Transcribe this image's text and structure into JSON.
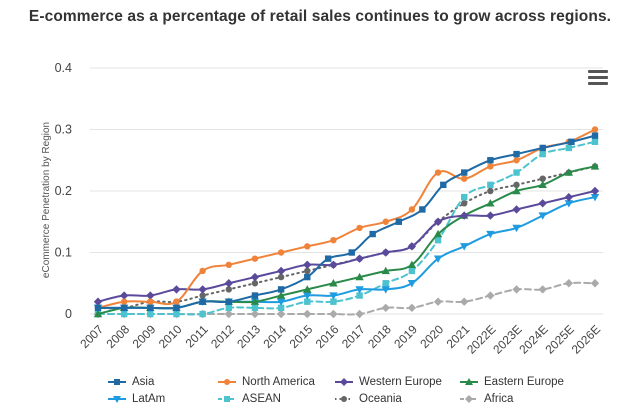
{
  "chart_data": {
    "type": "line",
    "title": "E-commerce as a percentage of retail sales continues to grow across regions.",
    "xlabel": "",
    "ylabel": "eCommerce Penetration by Region",
    "ylim": [
      0,
      0.4
    ],
    "yticks": [
      "0",
      "0.1",
      "0.2",
      "0.3",
      "0.4"
    ],
    "categories": [
      "2007",
      "2008",
      "2009",
      "2010",
      "2011",
      "2012",
      "2013",
      "2014",
      "2015",
      "2016",
      "2017",
      "2018",
      "2019",
      "2020",
      "2021",
      "2022E",
      "2023E",
      "2024E",
      "2025E",
      "2026E"
    ],
    "x_positions": [
      0,
      1,
      2,
      3,
      4,
      5,
      6,
      7,
      8,
      9,
      10,
      11,
      12,
      13,
      14,
      15,
      16,
      17,
      18,
      19
    ],
    "series": [
      {
        "name": "Asia",
        "color": "#1f6aa5",
        "dash": "solid",
        "marker": "square",
        "x": [
          0,
          1,
          2,
          3,
          4,
          5,
          6,
          7,
          8,
          8.8,
          9.7,
          10.5,
          11.5,
          12.4,
          13.2,
          14,
          15,
          16,
          17,
          18.1,
          19
        ],
        "values": [
          0.01,
          0.01,
          0.01,
          0.01,
          0.02,
          0.02,
          0.03,
          0.04,
          0.06,
          0.09,
          0.1,
          0.13,
          0.15,
          0.17,
          0.21,
          0.23,
          0.25,
          0.26,
          0.27,
          0.28,
          0.29
        ]
      },
      {
        "name": "North America",
        "color": "#f0833a",
        "dash": "solid",
        "marker": "circle",
        "x": [
          0,
          1,
          2,
          3,
          4,
          5,
          6,
          7,
          8,
          9,
          10,
          11,
          12,
          13,
          14,
          15,
          16,
          17,
          18,
          19
        ],
        "values": [
          0.01,
          0.02,
          0.02,
          0.02,
          0.07,
          0.08,
          0.09,
          0.1,
          0.11,
          0.12,
          0.14,
          0.15,
          0.17,
          0.23,
          0.22,
          0.24,
          0.25,
          0.27,
          0.28,
          0.3
        ]
      },
      {
        "name": "Western Europe",
        "color": "#5b4a9b",
        "dash": "solid",
        "marker": "diamond",
        "x": [
          0,
          1,
          2,
          3,
          4,
          5,
          6,
          7,
          8,
          9,
          10,
          11,
          12,
          13,
          14,
          15,
          16,
          17,
          18,
          19
        ],
        "values": [
          0.02,
          0.03,
          0.03,
          0.04,
          0.04,
          0.05,
          0.06,
          0.07,
          0.08,
          0.08,
          0.09,
          0.1,
          0.11,
          0.15,
          0.16,
          0.16,
          0.17,
          0.18,
          0.19,
          0.2
        ]
      },
      {
        "name": "Eastern Europe",
        "color": "#2a8a4a",
        "dash": "solid",
        "marker": "triangle",
        "x": [
          0,
          1,
          2,
          3,
          4,
          5,
          6,
          7,
          8,
          9,
          10,
          11,
          12,
          13,
          14,
          15,
          16,
          17,
          18,
          19
        ],
        "values": [
          0.0,
          0.01,
          0.01,
          0.01,
          0.02,
          0.02,
          0.02,
          0.03,
          0.04,
          0.05,
          0.06,
          0.07,
          0.08,
          0.13,
          0.16,
          0.18,
          0.2,
          0.21,
          0.23,
          0.24
        ]
      },
      {
        "name": "LatAm",
        "color": "#1f9be0",
        "dash": "solid",
        "marker": "triangle-down",
        "x": [
          0,
          1,
          2,
          3,
          4,
          5,
          6,
          7,
          8,
          9,
          10,
          11,
          12,
          13,
          14,
          15,
          16,
          17,
          18,
          19
        ],
        "values": [
          0.01,
          0.01,
          0.01,
          0.01,
          0.02,
          0.02,
          0.02,
          0.02,
          0.03,
          0.03,
          0.04,
          0.04,
          0.05,
          0.09,
          0.11,
          0.13,
          0.14,
          0.16,
          0.18,
          0.19
        ]
      },
      {
        "name": "ASEAN",
        "color": "#4cc3cf",
        "dash": "dashed",
        "marker": "square",
        "x": [
          0,
          1,
          2,
          3,
          4,
          5,
          6,
          7,
          8,
          9,
          10,
          11,
          12,
          13,
          14,
          15,
          16,
          17,
          18,
          19
        ],
        "values": [
          0.0,
          0.0,
          0.0,
          0.0,
          0.0,
          0.01,
          0.01,
          0.01,
          0.02,
          0.02,
          0.03,
          0.05,
          0.07,
          0.12,
          0.19,
          0.21,
          0.23,
          0.26,
          0.27,
          0.28
        ]
      },
      {
        "name": "Oceania",
        "color": "#666666",
        "dash": "dotted",
        "marker": "circle",
        "x": [
          0,
          1,
          2,
          3,
          4,
          5,
          6,
          7,
          8,
          9,
          10,
          11,
          12,
          13,
          14,
          15,
          16,
          17,
          18,
          19
        ],
        "values": [
          0.01,
          0.01,
          0.02,
          0.02,
          0.03,
          0.04,
          0.05,
          0.06,
          0.07,
          0.08,
          0.09,
          0.1,
          0.11,
          0.15,
          0.18,
          0.2,
          0.21,
          0.22,
          0.23,
          0.24
        ]
      },
      {
        "name": "Africa",
        "color": "#aaaaaa",
        "dash": "dashed",
        "marker": "diamond",
        "x": [
          0,
          1,
          2,
          3,
          4,
          5,
          6,
          7,
          8,
          9,
          10,
          11,
          12,
          13,
          14,
          15,
          16,
          17,
          18,
          19
        ],
        "values": [
          0.0,
          0.0,
          0.0,
          0.0,
          0.0,
          0.0,
          0.0,
          0.0,
          0.0,
          0.0,
          0.0,
          0.01,
          0.01,
          0.02,
          0.02,
          0.03,
          0.04,
          0.04,
          0.05,
          0.05
        ]
      }
    ],
    "grid": true,
    "legend_position": "bottom"
  },
  "menu": {
    "icon": "hamburger-menu-icon"
  }
}
